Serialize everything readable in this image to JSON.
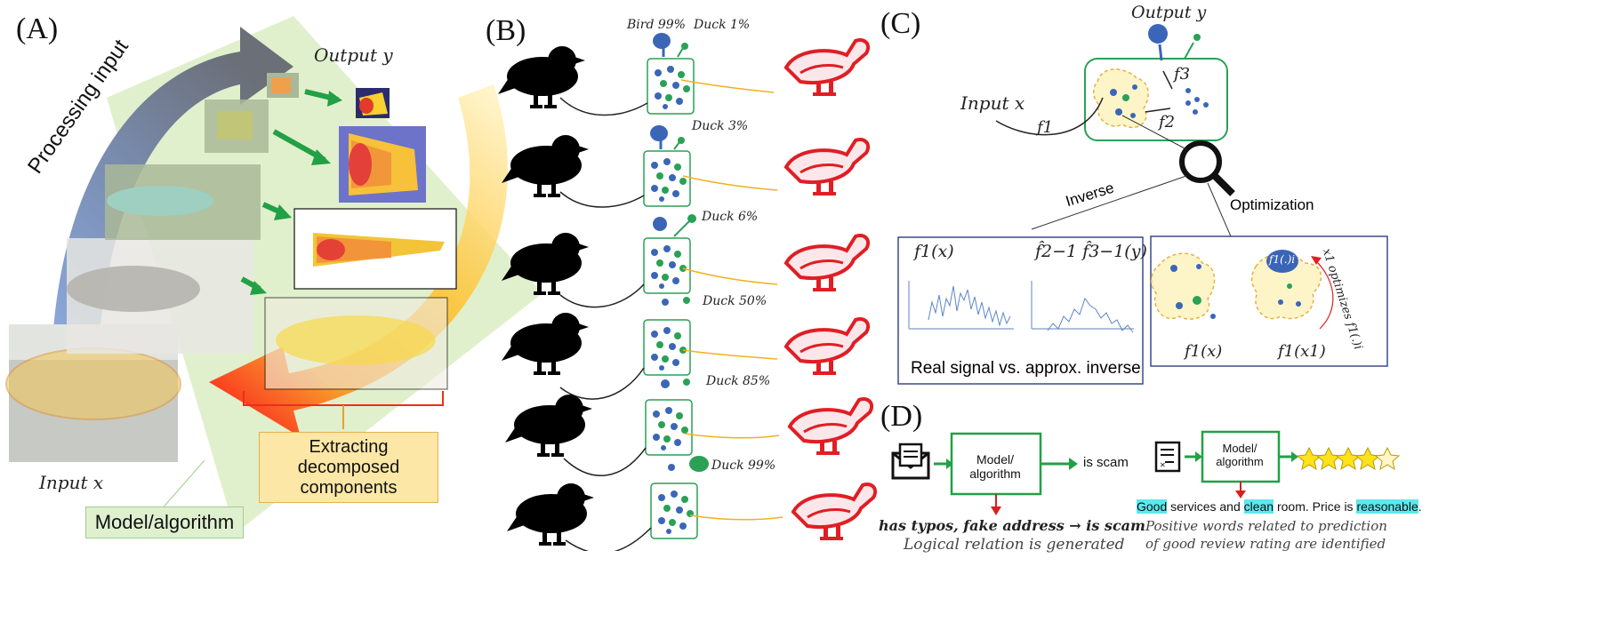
{
  "panels": {
    "a": {
      "label": "(A)",
      "processing_text": "Processing input",
      "output_y": "Output y",
      "input_x": "Input x",
      "extract_box": "Extracting decomposed components",
      "model_box": "Model/algorithm"
    },
    "b": {
      "label": "(B)",
      "rows": [
        {
          "top_labels": [
            "Bird 99%",
            "Duck 1%"
          ]
        },
        {
          "top_labels": [
            "Duck 3%"
          ]
        },
        {
          "top_labels": [
            "Duck 6%"
          ]
        },
        {
          "top_labels": [
            "Duck 50%"
          ]
        },
        {
          "top_labels": [
            "Duck 85%"
          ]
        },
        {
          "top_labels": [
            "Duck 99%"
          ]
        }
      ]
    },
    "c": {
      "label": "(C)",
      "output_y": "Output y",
      "input_x": "Input x",
      "f1": "f1",
      "f2": "f2",
      "f3": "f3",
      "inverse": "Inverse",
      "optimization": "Optimization",
      "left_box": {
        "left_title": "f1(x)",
        "right_title": "f̂2−1 f̂3−1(y)",
        "caption": "Real signal vs. approx. inverse"
      },
      "right_box": {
        "circle_label": "f1(.)i",
        "side_label": "x1 optimizes f1(.)i",
        "left_caption": "f1(x)",
        "right_caption": "f1(x1)"
      }
    },
    "d": {
      "label": "(D)",
      "left": {
        "model_box": "Model/ algorithm",
        "output": "is scam",
        "reason": "has typos, fake address → is scam",
        "caption": "Logical relation is generated"
      },
      "right": {
        "model_box": "Model/ algorithm",
        "review_parts": [
          {
            "text": "Good",
            "highlight": true
          },
          {
            "text": " services and ",
            "highlight": false
          },
          {
            "text": "clean",
            "highlight": true
          },
          {
            "text": " room. Price is ",
            "highlight": false
          },
          {
            "text": "reasonable",
            "highlight": true
          },
          {
            "text": ".",
            "highlight": false
          }
        ],
        "caption_line1": "Positive words related to prediction",
        "caption_line2": "of good review rating are identified",
        "stars": 5
      }
    }
  },
  "colors": {
    "green": "#22a045",
    "blue": "#3b66b8",
    "red": "#e51c23",
    "orange": "#f5b13a",
    "cyan_highlight": "#5ce8ee",
    "panel_border": "#3a4a8a",
    "star": "#ffe21a"
  }
}
